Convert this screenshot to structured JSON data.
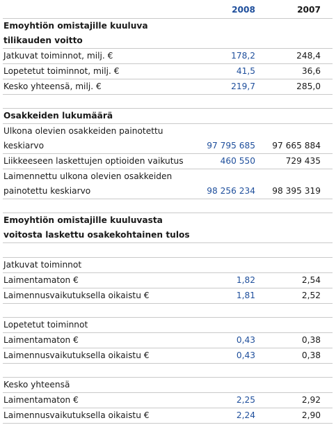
{
  "header": {
    "year_2008": "2008",
    "year_2007": "2007"
  },
  "section1": {
    "title_line1": "Emoyhtiön omistajille kuuluva",
    "title_line2": "tilikauden voitto",
    "rows": [
      {
        "label": "Jatkuvat toiminnot, milj. €",
        "v2008": "178,2",
        "v2007": "248,4"
      },
      {
        "label": "Lopetetut toiminnot, milj. €",
        "v2008": "41,5",
        "v2007": "36,6"
      },
      {
        "label": "Kesko yhteensä, milj. €",
        "v2008": "219,7",
        "v2007": "285,0"
      }
    ]
  },
  "section2": {
    "title": "Osakkeiden lukumäärä",
    "weighted_label_line1": "Ulkona olevien osakkeiden painotettu",
    "weighted_label_line2": "keskiarvo",
    "weighted_v2008": "97 795 685",
    "weighted_v2007": "97 665 884",
    "options_label": "Liikkeeseen laskettujen optioiden vaikutus",
    "options_v2008": "460 550",
    "options_v2007": "729 435",
    "diluted_label_line1": "Laimennettu ulkona olevien osakkeiden",
    "diluted_label_line2": "painotettu keskiarvo",
    "diluted_v2008": "98 256 234",
    "diluted_v2007": "98 395 319"
  },
  "section3": {
    "title_line1": "Emoyhtiön omistajille kuuluvasta",
    "title_line2": "voitosta laskettu osakekohtainen tulos",
    "groups": [
      {
        "title": "Jatkuvat toiminnot",
        "rows": [
          {
            "label": "Laimentamaton €",
            "v2008": "1,82",
            "v2007": "2,54"
          },
          {
            "label": "Laimennusvaikutuksella oikaistu €",
            "v2008": "1,81",
            "v2007": "2,52"
          }
        ]
      },
      {
        "title": "Lopetetut toiminnot",
        "rows": [
          {
            "label": "Laimentamaton €",
            "v2008": "0,43",
            "v2007": "0,38"
          },
          {
            "label": "Laimennusvaikutuksella oikaistu €",
            "v2008": "0,43",
            "v2007": "0,38"
          }
        ]
      },
      {
        "title": "Kesko yhteensä",
        "rows": [
          {
            "label": "Laimentamaton €",
            "v2008": "2,25",
            "v2007": "2,92"
          },
          {
            "label": "Laimennusvaikutuksella oikaistu €",
            "v2008": "2,24",
            "v2007": "2,90"
          }
        ]
      }
    ]
  }
}
